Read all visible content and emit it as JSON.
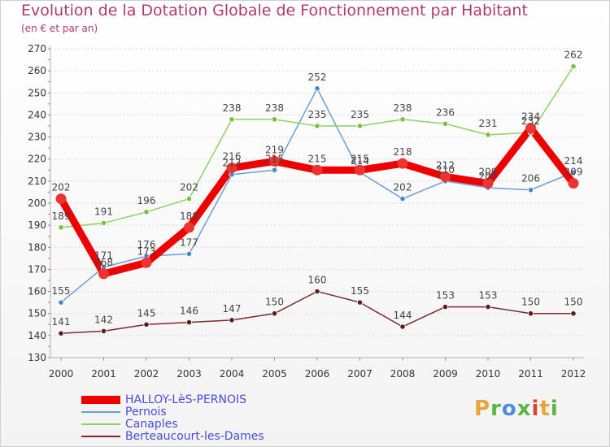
{
  "title": "Evolution de la Dotation Globale de Fonctionnement par Habitant",
  "subtitle": "(en € et par an)",
  "brand": {
    "text": "Proxiti",
    "colors": [
      "#e8a33a",
      "#57b844",
      "#4a8fd8",
      "#57b844",
      "#d8452f",
      "#e8a33a",
      "#57b844"
    ]
  },
  "chart_data": {
    "type": "line",
    "title": "Evolution de la Dotation Globale de Fonctionnement par Habitant",
    "subtitle": "(en € et par an)",
    "xlabel": "",
    "ylabel": "",
    "ylim": [
      130,
      270
    ],
    "yticks": [
      130,
      140,
      150,
      160,
      170,
      180,
      190,
      200,
      210,
      220,
      230,
      240,
      250,
      260,
      270
    ],
    "categories": [
      "2000",
      "2001",
      "2002",
      "2003",
      "2004",
      "2005",
      "2006",
      "2007",
      "2008",
      "2009",
      "2010",
      "2011",
      "2012"
    ],
    "series": [
      {
        "name": "HALLOY-LèS-PERNOIS",
        "color": "#ee0000",
        "point_color": "#ee3333",
        "emphasis": true,
        "values": [
          202,
          168,
          173,
          189,
          216,
          219,
          215,
          215,
          218,
          212,
          209,
          234,
          209
        ]
      },
      {
        "name": "Pernois",
        "color": "#6a9fd4",
        "point_color": "#4a87c4",
        "emphasis": false,
        "values": [
          155,
          171,
          176,
          177,
          213,
          215,
          252,
          214,
          202,
          210,
          207,
          206,
          214
        ]
      },
      {
        "name": "Canaples",
        "color": "#8fd066",
        "point_color": "#78c145",
        "emphasis": false,
        "values": [
          189,
          191,
          196,
          202,
          238,
          238,
          235,
          235,
          238,
          236,
          231,
          232,
          262
        ]
      },
      {
        "name": "Berteaucourt-les-Dames",
        "color": "#7a2a2a",
        "point_color": "#5e1c1c",
        "emphasis": false,
        "values": [
          141,
          142,
          145,
          146,
          147,
          150,
          160,
          155,
          144,
          153,
          153,
          150,
          150
        ]
      }
    ],
    "grid": "horizontal-dotted",
    "legend": "bottom-left"
  }
}
